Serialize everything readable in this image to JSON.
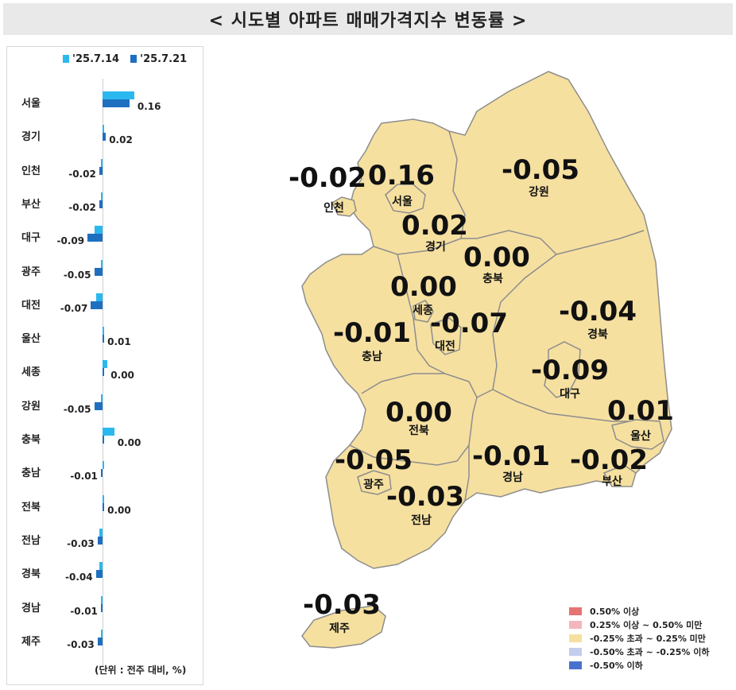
{
  "title": "< 시도별 아파트 매매가격지수 변동률 >",
  "chart_data": [
    {
      "type": "bar",
      "orientation": "horizontal",
      "series": [
        {
          "name": "'25.7.14",
          "color": "#2bb8ef",
          "values": [
            0.19,
            0.01,
            -0.01,
            -0.01,
            -0.05,
            -0.01,
            -0.04,
            0.0,
            0.03,
            -0.01,
            0.07,
            0.0,
            0.01,
            -0.02,
            -0.02,
            -0.01,
            -0.01
          ]
        },
        {
          "name": "'25.7.21",
          "color": "#1f6fc0",
          "values": [
            0.16,
            0.02,
            -0.02,
            -0.02,
            -0.09,
            -0.05,
            -0.07,
            0.01,
            0.0,
            -0.05,
            0.0,
            -0.01,
            0.0,
            -0.03,
            -0.04,
            -0.01,
            -0.03
          ]
        }
      ],
      "categories": [
        "서울",
        "경기",
        "인천",
        "부산",
        "대구",
        "광주",
        "대전",
        "울산",
        "세종",
        "강원",
        "충북",
        "충남",
        "전북",
        "전남",
        "경북",
        "경남",
        "제주"
      ],
      "data_labels": [
        "0.16",
        "0.02",
        "-0.02",
        "-0.02",
        "-0.09",
        "-0.05",
        "-0.07",
        "0.01",
        "0.00",
        "-0.05",
        "0.00",
        "-0.01",
        "0.00",
        "-0.03",
        "-0.04",
        "-0.01",
        "-0.03"
      ],
      "unit_note": "(단위 : 전주 대비, %)"
    },
    {
      "type": "choropleth-map",
      "regions": [
        {
          "name": "인천",
          "value": "-0.02"
        },
        {
          "name": "서울",
          "value": "0.16"
        },
        {
          "name": "강원",
          "value": "-0.05"
        },
        {
          "name": "경기",
          "value": "0.02"
        },
        {
          "name": "충북",
          "value": "0.00"
        },
        {
          "name": "세종",
          "value": "0.00"
        },
        {
          "name": "충남",
          "value": "-0.01"
        },
        {
          "name": "대전",
          "value": "-0.07"
        },
        {
          "name": "경북",
          "value": "-0.04"
        },
        {
          "name": "대구",
          "value": "-0.09"
        },
        {
          "name": "울산",
          "value": "0.01"
        },
        {
          "name": "전북",
          "value": "0.00"
        },
        {
          "name": "광주",
          "value": "-0.05"
        },
        {
          "name": "경남",
          "value": "-0.01"
        },
        {
          "name": "부산",
          "value": "-0.02"
        },
        {
          "name": "전남",
          "value": "-0.03"
        },
        {
          "name": "제주",
          "value": "-0.03"
        }
      ],
      "legend": [
        {
          "label": "0.50% 이상",
          "color": "#e57373"
        },
        {
          "label": "0.25% 이상 ~ 0.50% 미만",
          "color": "#f4b6bd"
        },
        {
          "label": "-0.25% 초과 ~ 0.25% 미만",
          "color": "#f6e0a0"
        },
        {
          "label": "-0.50% 초과 ~ -0.25% 이하",
          "color": "#c5cdee"
        },
        {
          "label": "-0.50% 이하",
          "color": "#4a72cc"
        }
      ],
      "fill_color": "#f6e0a0",
      "border_color": "#8d8d8d"
    }
  ]
}
